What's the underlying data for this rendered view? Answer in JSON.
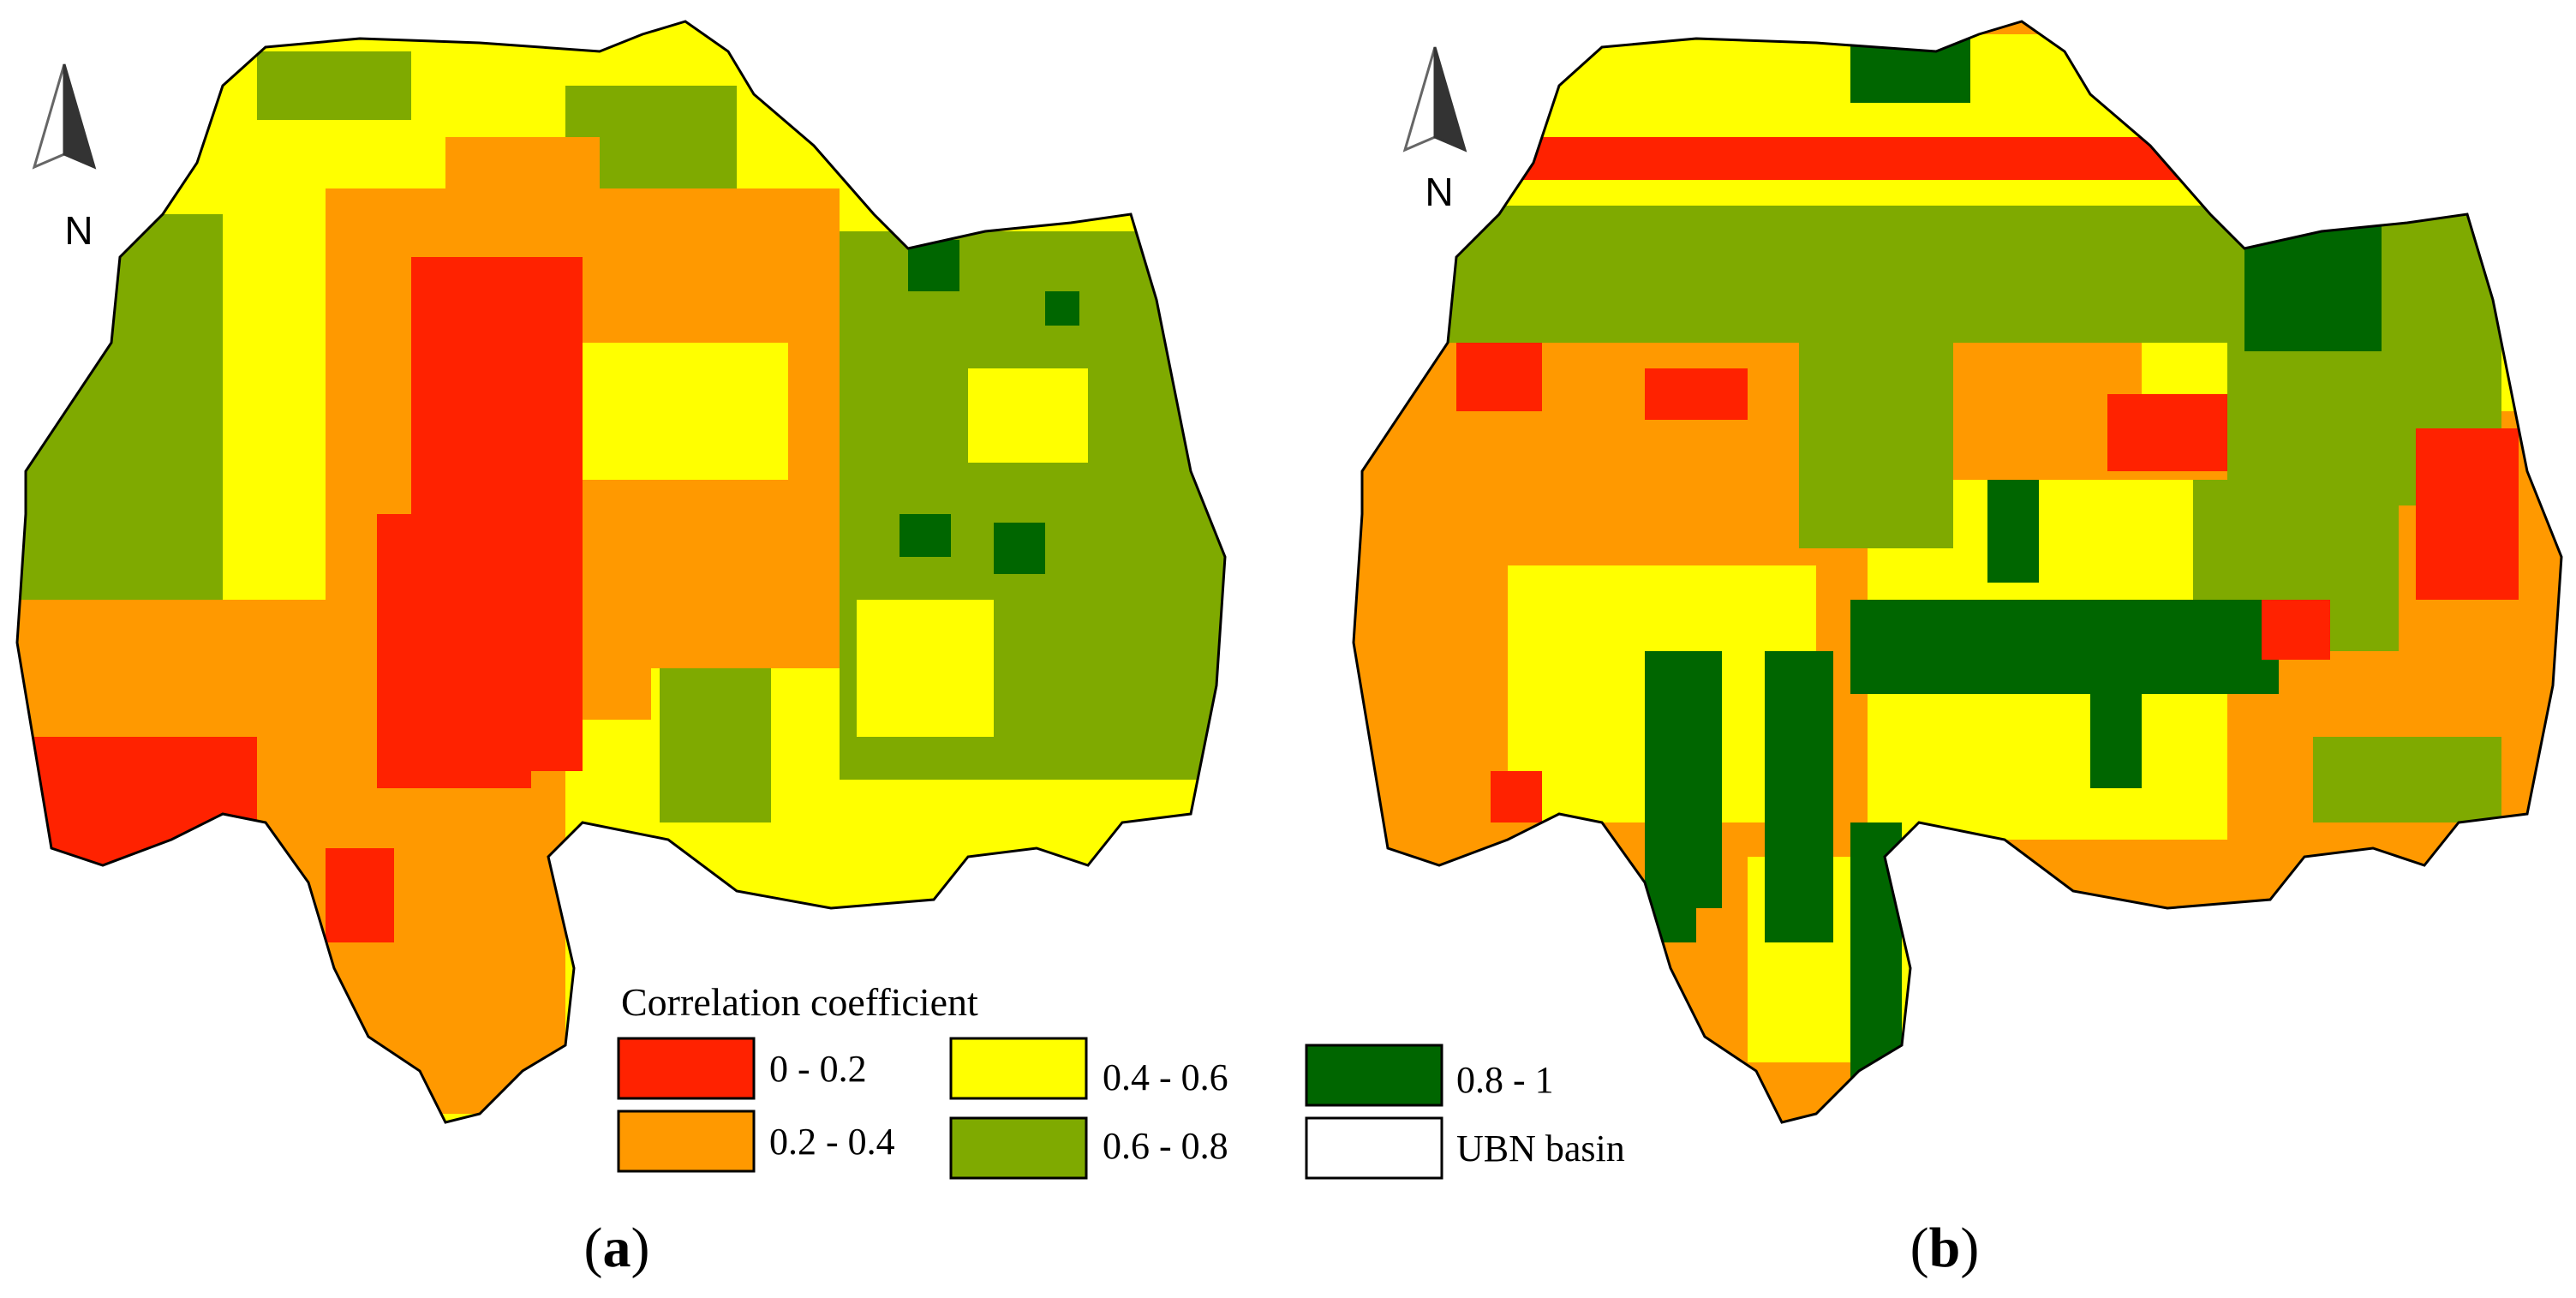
{
  "north_label": "N",
  "panels": [
    {
      "label_open": "(",
      "label_letter": "a",
      "label_close": ")"
    },
    {
      "label_open": "(",
      "label_letter": "b",
      "label_close": ")"
    }
  ],
  "legend": {
    "title": "Correlation coefficient",
    "items": [
      {
        "label": "0 - 0.2",
        "color": "#ff2200"
      },
      {
        "label": "0.2 - 0.4",
        "color": "#ff9900"
      },
      {
        "label": "0.4 - 0.6",
        "color": "#ffff00"
      },
      {
        "label": "0.6 - 0.8",
        "color": "#7faa00"
      },
      {
        "label": "0.8 - 1",
        "color": "#006600"
      },
      {
        "label": "UBN basin",
        "color": "#ffffff"
      }
    ]
  }
}
